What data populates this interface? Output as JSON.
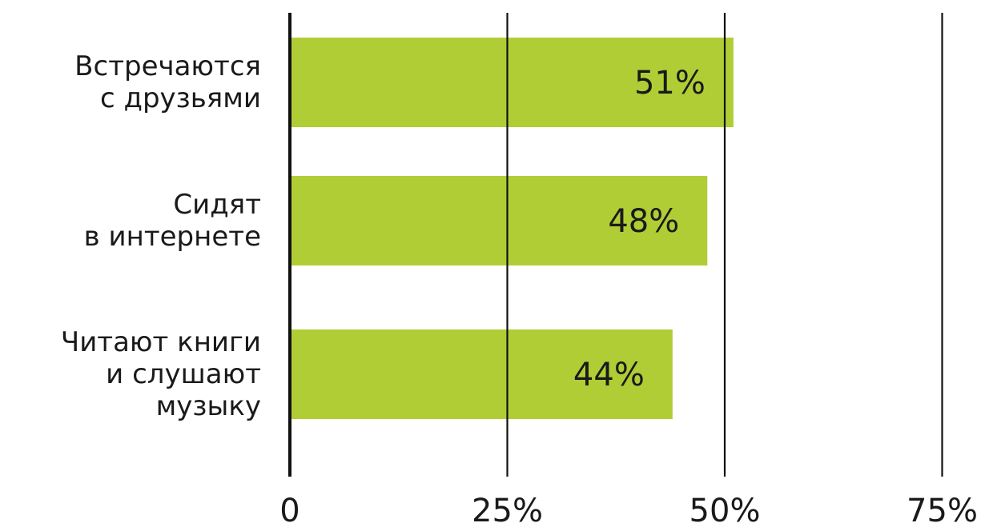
{
  "chart_data": {
    "type": "bar",
    "orientation": "horizontal",
    "categories": [
      [
        "Встречаются",
        "с друзьями"
      ],
      [
        "Сидят",
        "в интернете"
      ],
      [
        "Читают книги",
        "и слушают",
        "музыку"
      ]
    ],
    "values": [
      51,
      48,
      44
    ],
    "value_labels": [
      "51%",
      "48%",
      "44%"
    ],
    "xlim": [
      0,
      75
    ],
    "xticks": [
      0,
      25,
      50,
      75
    ],
    "xtick_labels": [
      "0",
      "25%",
      "50%",
      "75%"
    ],
    "grid": "vertical",
    "title": "",
    "xlabel": "",
    "ylabel": "",
    "colors": {
      "bar": "#b1cd35",
      "axis": "#111111",
      "grid": "#111111",
      "text": "#1a1a1a"
    }
  }
}
